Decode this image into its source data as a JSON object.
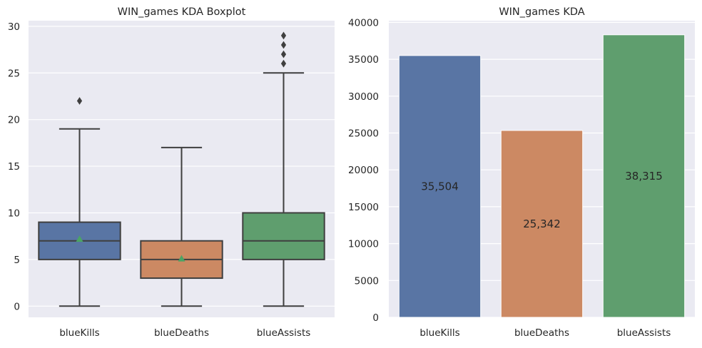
{
  "chart_data": [
    {
      "type": "boxplot",
      "title": "WIN_games KDA Boxplot",
      "xlabel": "",
      "ylabel": "",
      "categories": [
        "blueKills",
        "blueDeaths",
        "blueAssists"
      ],
      "ylim": [
        -1.2,
        30.6
      ],
      "yticks": [
        0,
        5,
        10,
        15,
        20,
        25,
        30
      ],
      "grid": true,
      "colors": [
        "#5975a4",
        "#cc8963",
        "#5f9e6e"
      ],
      "mean_marker_color": "#4aa564",
      "boxes": [
        {
          "category": "blueKills",
          "whisker_low": 0,
          "q1": 5,
          "median": 7,
          "q3": 9,
          "whisker_high": 19,
          "mean": 7.2,
          "outliers": [
            22
          ]
        },
        {
          "category": "blueDeaths",
          "whisker_low": 0,
          "q1": 3,
          "median": 5,
          "q3": 7,
          "whisker_high": 17,
          "mean": 5.1,
          "outliers": []
        },
        {
          "category": "blueAssists",
          "whisker_low": 0,
          "q1": 5,
          "median": 7,
          "q3": 10,
          "whisker_high": 25,
          "mean": null,
          "outliers": [
            26,
            27,
            28,
            29
          ]
        }
      ]
    },
    {
      "type": "bar",
      "title": "WIN_games KDA",
      "xlabel": "",
      "ylabel": "",
      "categories": [
        "blueKills",
        "blueDeaths",
        "blueAssists"
      ],
      "values": [
        35504,
        25342,
        38315
      ],
      "data_labels": [
        "35,504",
        "25,342",
        "38,315"
      ],
      "ylim": [
        0,
        40231
      ],
      "yticks": [
        0,
        5000,
        10000,
        15000,
        20000,
        25000,
        30000,
        35000,
        40000
      ],
      "grid": true,
      "colors": [
        "#5975a4",
        "#cc8963",
        "#5f9e6e"
      ]
    }
  ]
}
